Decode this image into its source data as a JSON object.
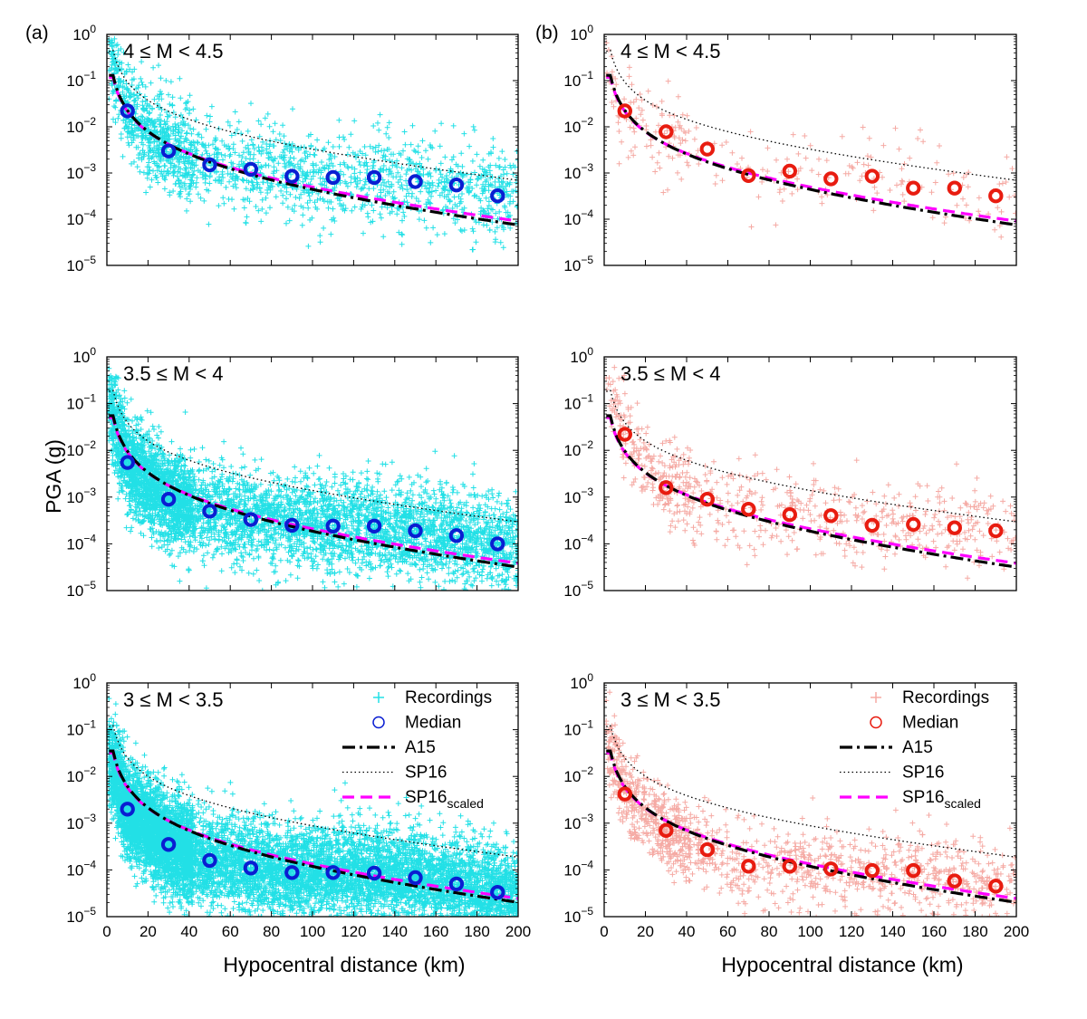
{
  "figure": {
    "panel_labels": [
      "(a)",
      "(b)"
    ],
    "ylabel": "PGA (g)",
    "xlabel": "Hypocentral distance (km)"
  },
  "colors": {
    "recordings_a": "#22e0e6",
    "recordings_b": "#f5aaa4",
    "median_a": "#0a1ed2",
    "median_b": "#e81c10",
    "A15": "#000000",
    "SP16": "#000000",
    "SP16_scaled": "#ff00ff"
  },
  "legend": {
    "recordings": "Recordings",
    "median": "Median",
    "A15": "A15",
    "SP16": "SP16",
    "SP16_scaled_main": "SP16",
    "SP16_scaled_sub": "scaled"
  },
  "chart_data": [
    {
      "type": "scatter",
      "panel": "(a)",
      "annotation": "4 ≤ M < 4.5",
      "xlim": [
        0,
        200
      ],
      "ylim": [
        1e-05,
        1
      ],
      "yscale": "log",
      "xticks": [
        0,
        20,
        40,
        60,
        80,
        100,
        120,
        140,
        160,
        180,
        200
      ],
      "yticks": [
        "10^-5",
        "10^-4",
        "10^-3",
        "10^-2",
        "10^-1",
        "10^0"
      ],
      "median": {
        "x": [
          10,
          30,
          50,
          70,
          90,
          110,
          130,
          150,
          170,
          190
        ],
        "y": [
          0.022,
          0.003,
          0.0015,
          0.0012,
          0.00085,
          0.0008,
          0.0008,
          0.00065,
          0.00055,
          0.00032
        ]
      },
      "recordings": {
        "density": 1800,
        "spread_decades": 0.5
      },
      "legend": false
    },
    {
      "type": "scatter",
      "panel": "(b)",
      "annotation": "4 ≤ M < 4.5",
      "xlim": [
        0,
        200
      ],
      "ylim": [
        1e-05,
        1
      ],
      "yscale": "log",
      "xticks": [
        0,
        20,
        40,
        60,
        80,
        100,
        120,
        140,
        160,
        180,
        200
      ],
      "yticks": [
        "10^-5",
        "10^-4",
        "10^-3",
        "10^-2",
        "10^-1",
        "10^0"
      ],
      "median": {
        "x": [
          10,
          30,
          50,
          70,
          90,
          110,
          130,
          150,
          170,
          190
        ],
        "y": [
          0.022,
          0.0078,
          0.0033,
          0.00088,
          0.0011,
          0.00075,
          0.00085,
          0.00047,
          0.00047,
          0.00032
        ]
      },
      "recordings": {
        "density": 250,
        "spread_decades": 0.45
      },
      "legend": false
    },
    {
      "type": "scatter",
      "panel": "(a)",
      "annotation": "3.5 ≤ M < 4",
      "xlim": [
        0,
        200
      ],
      "ylim": [
        1e-05,
        1
      ],
      "yscale": "log",
      "xticks": [
        0,
        20,
        40,
        60,
        80,
        100,
        120,
        140,
        160,
        180,
        200
      ],
      "yticks": [
        "10^-5",
        "10^-4",
        "10^-3",
        "10^-2",
        "10^-1",
        "10^0"
      ],
      "median": {
        "x": [
          10,
          30,
          50,
          70,
          90,
          110,
          130,
          150,
          170,
          190
        ],
        "y": [
          0.0055,
          0.0009,
          0.0005,
          0.00033,
          0.00025,
          0.00024,
          0.00024,
          0.00019,
          0.00015,
          0.0001
        ]
      },
      "recordings": {
        "density": 5000,
        "spread_decades": 0.5
      },
      "legend": false
    },
    {
      "type": "scatter",
      "panel": "(b)",
      "annotation": "3.5 ≤ M < 4",
      "xlim": [
        0,
        200
      ],
      "ylim": [
        1e-05,
        1
      ],
      "yscale": "log",
      "xticks": [
        0,
        20,
        40,
        60,
        80,
        100,
        120,
        140,
        160,
        180,
        200
      ],
      "yticks": [
        "10^-5",
        "10^-4",
        "10^-3",
        "10^-2",
        "10^-1",
        "10^0"
      ],
      "median": {
        "x": [
          10,
          30,
          50,
          70,
          90,
          110,
          130,
          150,
          170,
          190
        ],
        "y": [
          0.022,
          0.0016,
          0.0009,
          0.00055,
          0.00042,
          0.0004,
          0.00025,
          0.00026,
          0.00022,
          0.00019
        ]
      },
      "recordings": {
        "density": 700,
        "spread_decades": 0.45
      },
      "legend": false
    },
    {
      "type": "scatter",
      "panel": "(a)",
      "annotation": "3 ≤ M < 3.5",
      "xlim": [
        0,
        200
      ],
      "ylim": [
        1e-05,
        1
      ],
      "yscale": "log",
      "xticks": [
        0,
        20,
        40,
        60,
        80,
        100,
        120,
        140,
        160,
        180,
        200
      ],
      "yticks": [
        "10^-5",
        "10^-4",
        "10^-3",
        "10^-2",
        "10^-1",
        "10^0"
      ],
      "median": {
        "x": [
          10,
          30,
          50,
          70,
          90,
          110,
          130,
          150,
          170,
          190
        ],
        "y": [
          0.002,
          0.00035,
          0.00016,
          0.00011,
          8.8e-05,
          8.8e-05,
          8.5e-05,
          6.8e-05,
          5e-05,
          3.3e-05
        ]
      },
      "recordings": {
        "density": 9000,
        "spread_decades": 0.5
      },
      "legend": true
    },
    {
      "type": "scatter",
      "panel": "(b)",
      "annotation": "3 ≤ M < 3.5",
      "xlim": [
        0,
        200
      ],
      "ylim": [
        1e-05,
        1
      ],
      "yscale": "log",
      "xticks": [
        0,
        20,
        40,
        60,
        80,
        100,
        120,
        140,
        160,
        180,
        200
      ],
      "yticks": [
        "10^-5",
        "10^-4",
        "10^-3",
        "10^-2",
        "10^-1",
        "10^0"
      ],
      "median": {
        "x": [
          10,
          30,
          50,
          70,
          90,
          110,
          130,
          150,
          170,
          190
        ],
        "y": [
          0.0042,
          0.0007,
          0.00027,
          0.00012,
          0.00012,
          0.000105,
          9.7e-05,
          9.7e-05,
          5.8e-05,
          4.5e-05
        ]
      },
      "recordings": {
        "density": 1300,
        "spread_decades": 0.45
      },
      "legend": true
    }
  ]
}
